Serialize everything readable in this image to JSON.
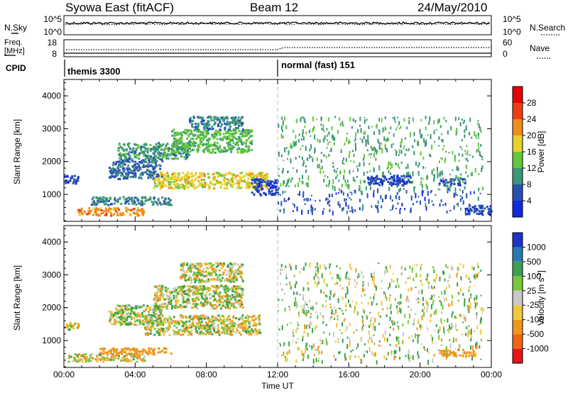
{
  "header": {
    "station": "Syowa East (fitACF)",
    "beam": "Beam 12",
    "date": "24/May/2010"
  },
  "status_panels": {
    "nsky": {
      "left_label": "N.Sky",
      "right_label": "N.Search",
      "left_ticks": [
        "10^5",
        "10^0"
      ],
      "right_ticks": [
        "10^5",
        "10^0"
      ]
    },
    "freq": {
      "left_label_line1": "Freq.",
      "left_label_line2": "[MHz]",
      "right_label": "Nave",
      "left_ticks": [
        "18",
        "8"
      ],
      "right_ticks": [
        "60",
        "0"
      ]
    },
    "cpid": {
      "label": "CPID",
      "modes": [
        {
          "name": "themis 3300",
          "start_hour": 0
        },
        {
          "name": "normal (fast) 151",
          "start_hour": 12
        }
      ]
    }
  },
  "chart_data": [
    {
      "type": "heatmap",
      "title": "Power",
      "xlabel": "",
      "ylabel": "Slant Range [km]",
      "xlim": [
        0,
        24
      ],
      "ylim": [
        180,
        4500
      ],
      "y_ticks": [
        "1000",
        "2000",
        "3000",
        "4000"
      ],
      "colorbar": {
        "label": "Power [dB]",
        "ticks": [
          "4",
          "8",
          "12",
          "16",
          "20",
          "24",
          "28"
        ],
        "colors": [
          "#1428dc",
          "#2850b4",
          "#3c9678",
          "#64c83c",
          "#e6d228",
          "#f08c1e",
          "#f03c14",
          "#e60000"
        ]
      },
      "regions": [
        {
          "x": [
            0.7,
            4.5
          ],
          "y": [
            380,
            620
          ],
          "value": 22
        },
        {
          "x": [
            0.0,
            0.8
          ],
          "y": [
            1350,
            1600
          ],
          "value": 5
        },
        {
          "x": [
            1.5,
            6.0
          ],
          "y": [
            700,
            950
          ],
          "value": 9
        },
        {
          "x": [
            2.5,
            5.5
          ],
          "y": [
            1500,
            2100
          ],
          "value": 7
        },
        {
          "x": [
            3.0,
            7.0
          ],
          "y": [
            2100,
            2600
          ],
          "value": 10
        },
        {
          "x": [
            5.0,
            11.5
          ],
          "y": [
            1200,
            1700
          ],
          "value": 18
        },
        {
          "x": [
            6.0,
            10.5
          ],
          "y": [
            2300,
            3000
          ],
          "value": 13
        },
        {
          "x": [
            7.0,
            10.0
          ],
          "y": [
            3000,
            3400
          ],
          "value": 9
        },
        {
          "x": [
            10.5,
            12.0
          ],
          "y": [
            1000,
            1500
          ],
          "value": 5
        },
        {
          "x": [
            12.0,
            23.5
          ],
          "y": [
            500,
            1200
          ],
          "value": 6
        },
        {
          "x": [
            12.0,
            23.5
          ],
          "y": [
            1200,
            3400
          ],
          "value": 11
        },
        {
          "x": [
            17.0,
            19.5
          ],
          "y": [
            1300,
            1600
          ],
          "value": 5
        },
        {
          "x": [
            21.0,
            22.5
          ],
          "y": [
            1300,
            1500
          ],
          "value": 6
        },
        {
          "x": [
            22.5,
            24.0
          ],
          "y": [
            400,
            700
          ],
          "value": 5
        }
      ]
    },
    {
      "type": "heatmap",
      "title": "Velocity",
      "xlabel": "Time UT",
      "ylabel": "Slant Range [km]",
      "xlim": [
        0,
        24
      ],
      "ylim": [
        180,
        4500
      ],
      "x_ticks": [
        "00:00",
        "04:00",
        "08:00",
        "12:00",
        "16:00",
        "20:00",
        "00:00"
      ],
      "y_ticks": [
        "1000",
        "2000",
        "3000",
        "4000"
      ],
      "colorbar": {
        "label": "Velocity [m s-1]",
        "ticks": [
          "1000",
          "500",
          "100",
          "25",
          "-25",
          "-100",
          "-500",
          "-1000"
        ],
        "colors": [
          "#1e32c8",
          "#2878b4",
          "#3ca050",
          "#78c83c",
          "#c8c8c8",
          "#f0c83c",
          "#f0961e",
          "#f06414",
          "#e61414"
        ]
      },
      "regions": [
        {
          "x": [
            0.2,
            4.5
          ],
          "y": [
            380,
            620
          ],
          "value": -60
        },
        {
          "x": [
            0.0,
            0.8
          ],
          "y": [
            1350,
            1600
          ],
          "value": 0
        },
        {
          "x": [
            2.0,
            6.0
          ],
          "y": [
            600,
            800
          ],
          "value": -300
        },
        {
          "x": [
            2.5,
            5.5
          ],
          "y": [
            1500,
            2100
          ],
          "value": 40
        },
        {
          "x": [
            4.5,
            11.0
          ],
          "y": [
            1200,
            1800
          ],
          "value": 0
        },
        {
          "x": [
            5.0,
            10.0
          ],
          "y": [
            2000,
            2700
          ],
          "value": 10
        },
        {
          "x": [
            6.5,
            10.0
          ],
          "y": [
            2800,
            3400
          ],
          "value": 0
        },
        {
          "x": [
            12.0,
            23.5
          ],
          "y": [
            400,
            3400
          ],
          "value": 60
        },
        {
          "x": [
            21.0,
            23.0
          ],
          "y": [
            550,
            750
          ],
          "value": -250
        }
      ]
    }
  ]
}
